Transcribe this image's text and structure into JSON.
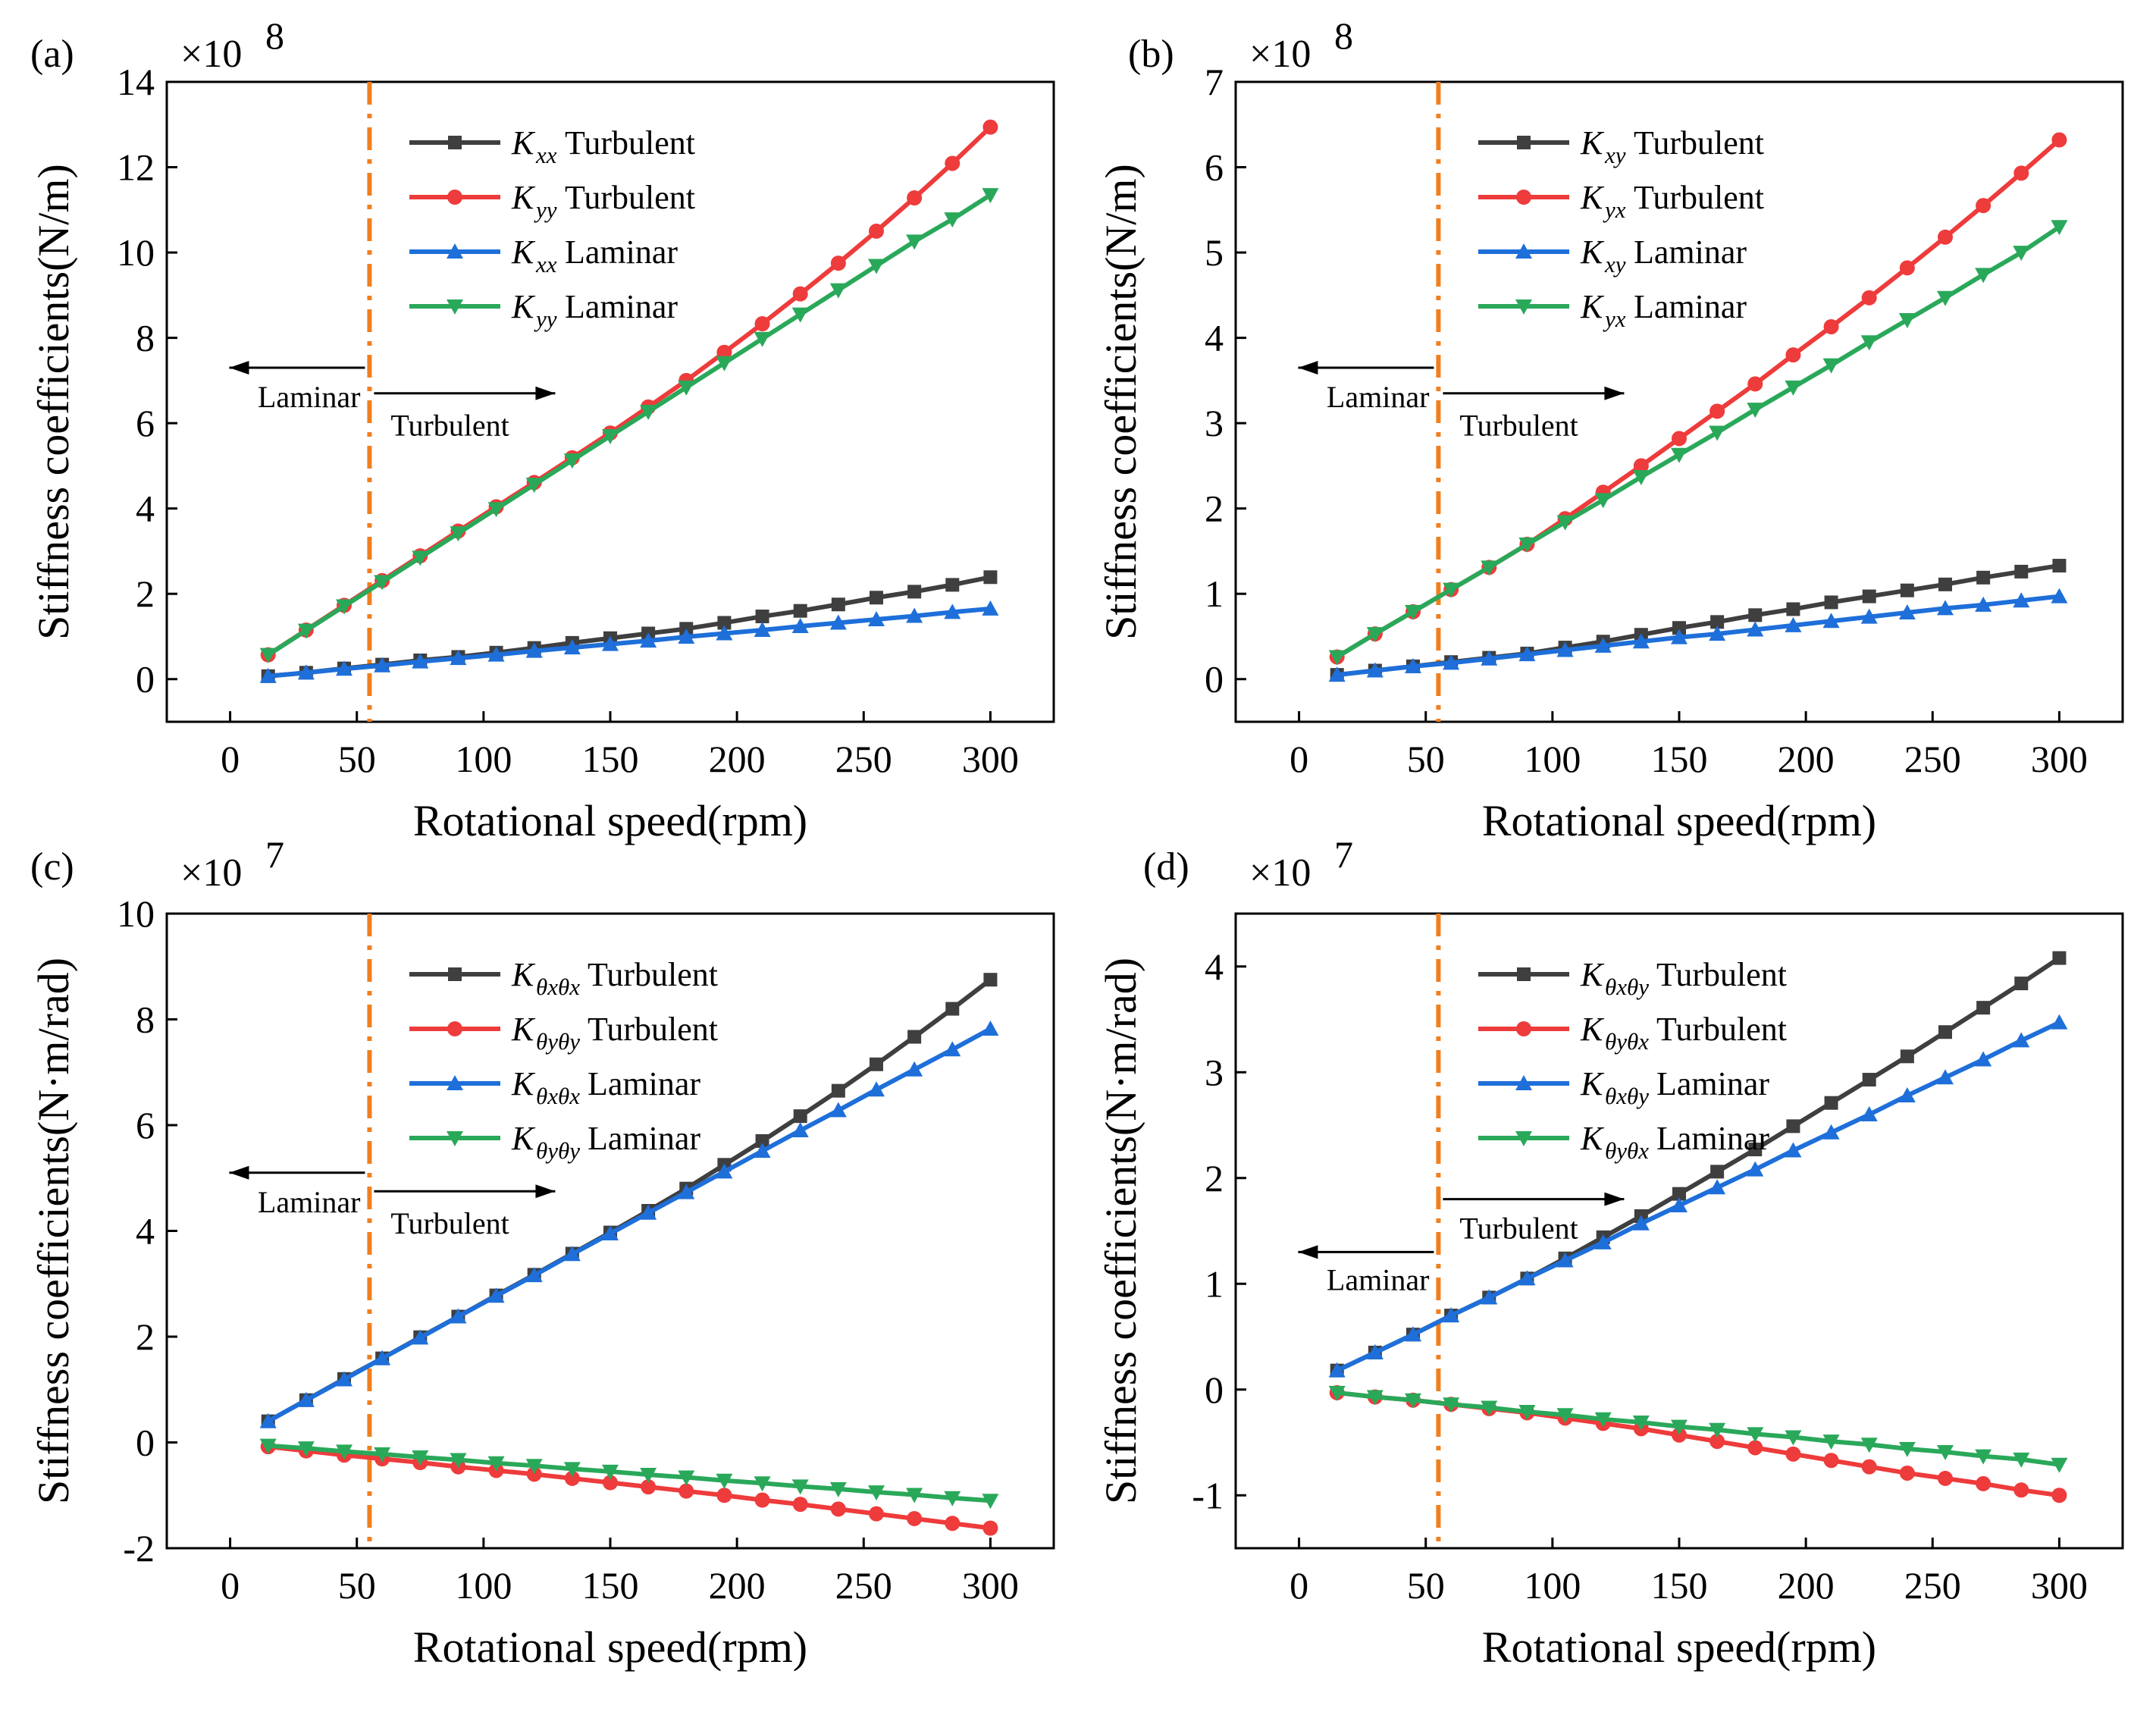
{
  "figure": {
    "vline_color": "#F07F1E",
    "vline_x": 55
  },
  "chart_data": [
    {
      "panel": "(a)",
      "type": "line",
      "scale": "×10",
      "scale_exp": "8",
      "xlabel": "Rotational speed(rpm)",
      "ylabel": "Stiffness coefficients(N/m)",
      "xlim": [
        -25,
        325
      ],
      "ylim": [
        -1,
        14
      ],
      "xticks": [
        "0",
        "50",
        "100",
        "150",
        "200",
        "250",
        "300"
      ],
      "xtick_values": [
        0,
        50,
        100,
        150,
        200,
        250,
        300
      ],
      "yticks": [
        "0",
        "2",
        "4",
        "6",
        "8",
        "10",
        "12",
        "14"
      ],
      "ytick_values": [
        0,
        2,
        4,
        6,
        8,
        10,
        12,
        14
      ],
      "legend_pos": "top-right",
      "annotations": {
        "left_label": "Laminar",
        "right_label": "Turbulent",
        "left_y": 7.3,
        "right_y": 6.7
      },
      "x": [
        15,
        30,
        45,
        60,
        75,
        90,
        105,
        120,
        135,
        150,
        165,
        180,
        195,
        210,
        225,
        240,
        255,
        270,
        285,
        300
      ],
      "series": [
        {
          "k": "K",
          "sub": "xx",
          "name": "Turbulent",
          "color": "#3F3F3F",
          "marker": "square",
          "values": [
            0.07,
            0.15,
            0.25,
            0.34,
            0.44,
            0.52,
            0.62,
            0.73,
            0.85,
            0.96,
            1.07,
            1.18,
            1.32,
            1.47,
            1.6,
            1.75,
            1.91,
            2.05,
            2.21,
            2.39
          ]
        },
        {
          "k": "K",
          "sub": "yy",
          "name": "Turbulent",
          "color": "#EE3B3B",
          "marker": "circle",
          "values": [
            0.57,
            1.15,
            1.73,
            2.31,
            2.89,
            3.47,
            4.04,
            4.61,
            5.19,
            5.77,
            6.38,
            7.0,
            7.66,
            8.33,
            9.03,
            9.75,
            10.5,
            11.28,
            12.09,
            12.94
          ]
        },
        {
          "k": "K",
          "sub": "xx",
          "name": "Laminar",
          "color": "#1E6FD9",
          "marker": "triangle-up",
          "values": [
            0.07,
            0.15,
            0.24,
            0.32,
            0.41,
            0.49,
            0.57,
            0.66,
            0.74,
            0.82,
            0.9,
            0.99,
            1.07,
            1.15,
            1.24,
            1.32,
            1.4,
            1.48,
            1.57,
            1.65
          ]
        },
        {
          "k": "K",
          "sub": "yy",
          "name": "Laminar",
          "color": "#2AA85A",
          "marker": "triangle-down",
          "values": [
            0.57,
            1.14,
            1.71,
            2.28,
            2.85,
            3.42,
            3.99,
            4.56,
            5.13,
            5.7,
            6.27,
            6.84,
            7.41,
            7.98,
            8.55,
            9.12,
            9.69,
            10.26,
            10.78,
            11.35
          ]
        }
      ]
    },
    {
      "panel": "(b)",
      "type": "line",
      "scale": "×10",
      "scale_exp": "8",
      "xlabel": "Rotational speed(rpm)",
      "ylabel": "Stiffness coefficients(N/m)",
      "xlim": [
        -25,
        325
      ],
      "ylim": [
        -0.5,
        7
      ],
      "xticks": [
        "0",
        "50",
        "100",
        "150",
        "200",
        "250",
        "300"
      ],
      "xtick_values": [
        0,
        50,
        100,
        150,
        200,
        250,
        300
      ],
      "yticks": [
        "0",
        "1",
        "2",
        "3",
        "4",
        "5",
        "6",
        "7"
      ],
      "ytick_values": [
        0,
        1,
        2,
        3,
        4,
        5,
        6,
        7
      ],
      "legend_pos": "top-right",
      "annotations": {
        "left_label": "Laminar",
        "right_label": "Turbulent",
        "left_y": 3.65,
        "right_y": 3.35
      },
      "x": [
        15,
        30,
        45,
        60,
        75,
        90,
        105,
        120,
        135,
        150,
        165,
        180,
        195,
        210,
        225,
        240,
        255,
        270,
        285,
        300
      ],
      "series": [
        {
          "k": "K",
          "sub": "xy",
          "name": "Turbulent",
          "color": "#3F3F3F",
          "marker": "square",
          "values": [
            0.05,
            0.1,
            0.15,
            0.2,
            0.25,
            0.3,
            0.37,
            0.44,
            0.52,
            0.6,
            0.67,
            0.75,
            0.82,
            0.9,
            0.97,
            1.04,
            1.11,
            1.19,
            1.26,
            1.33
          ]
        },
        {
          "k": "K",
          "sub": "yx",
          "name": "Turbulent",
          "color": "#EE3B3B",
          "marker": "circle",
          "values": [
            0.26,
            0.53,
            0.79,
            1.05,
            1.31,
            1.58,
            1.88,
            2.19,
            2.5,
            2.82,
            3.14,
            3.46,
            3.8,
            4.13,
            4.47,
            4.82,
            5.18,
            5.55,
            5.93,
            6.32
          ]
        },
        {
          "k": "K",
          "sub": "xy",
          "name": "Laminar",
          "color": "#1E6FD9",
          "marker": "triangle-up",
          "values": [
            0.05,
            0.1,
            0.15,
            0.19,
            0.24,
            0.29,
            0.34,
            0.39,
            0.44,
            0.49,
            0.53,
            0.58,
            0.63,
            0.68,
            0.73,
            0.78,
            0.83,
            0.87,
            0.92,
            0.97
          ]
        },
        {
          "k": "K",
          "sub": "yx",
          "name": "Laminar",
          "color": "#2AA85A",
          "marker": "triangle-down",
          "values": [
            0.26,
            0.53,
            0.79,
            1.05,
            1.31,
            1.58,
            1.84,
            2.1,
            2.37,
            2.63,
            2.89,
            3.16,
            3.42,
            3.68,
            3.95,
            4.21,
            4.47,
            4.74,
            5.0,
            5.3
          ]
        }
      ]
    },
    {
      "panel": "(c)",
      "type": "line",
      "scale": "×10",
      "scale_exp": "7",
      "xlabel": "Rotational speed(rpm)",
      "ylabel": "Stiffness coefficients(N·m/rad)",
      "xlim": [
        -25,
        325
      ],
      "ylim": [
        -2,
        10
      ],
      "xticks": [
        "0",
        "50",
        "100",
        "150",
        "200",
        "250",
        "300"
      ],
      "xtick_values": [
        0,
        50,
        100,
        150,
        200,
        250,
        300
      ],
      "yticks": [
        "-2",
        "0",
        "2",
        "4",
        "6",
        "8",
        "10"
      ],
      "ytick_values": [
        -2,
        0,
        2,
        4,
        6,
        8,
        10
      ],
      "legend_pos": "top-right",
      "annotations": {
        "left_label": "Laminar",
        "right_label": "Turbulent",
        "left_y": 5.1,
        "right_y": 4.75
      },
      "x": [
        15,
        30,
        45,
        60,
        75,
        90,
        105,
        120,
        135,
        150,
        165,
        180,
        195,
        210,
        225,
        240,
        255,
        270,
        285,
        300
      ],
      "series": [
        {
          "k": "K",
          "sub": "θxθx",
          "name": "Turbulent",
          "color": "#3F3F3F",
          "marker": "square",
          "values": [
            0.4,
            0.8,
            1.2,
            1.59,
            1.99,
            2.38,
            2.78,
            3.17,
            3.57,
            3.97,
            4.38,
            4.8,
            5.25,
            5.7,
            6.17,
            6.65,
            7.15,
            7.67,
            8.2,
            8.75
          ]
        },
        {
          "k": "K",
          "sub": "θyθy",
          "name": "Turbulent",
          "color": "#EE3B3B",
          "marker": "circle",
          "values": [
            -0.08,
            -0.16,
            -0.24,
            -0.31,
            -0.38,
            -0.46,
            -0.53,
            -0.6,
            -0.68,
            -0.76,
            -0.84,
            -0.92,
            -1.0,
            -1.09,
            -1.17,
            -1.26,
            -1.35,
            -1.44,
            -1.53,
            -1.62
          ]
        },
        {
          "k": "K",
          "sub": "θxθx",
          "name": "Laminar",
          "color": "#1E6FD9",
          "marker": "triangle-up",
          "values": [
            0.4,
            0.8,
            1.19,
            1.59,
            1.98,
            2.38,
            2.77,
            3.16,
            3.56,
            3.95,
            4.34,
            4.73,
            5.12,
            5.51,
            5.9,
            6.28,
            6.67,
            7.05,
            7.43,
            7.82
          ]
        },
        {
          "k": "K",
          "sub": "θyθy",
          "name": "Laminar",
          "color": "#2AA85A",
          "marker": "triangle-down",
          "values": [
            -0.06,
            -0.11,
            -0.17,
            -0.22,
            -0.28,
            -0.33,
            -0.39,
            -0.44,
            -0.5,
            -0.55,
            -0.61,
            -0.66,
            -0.72,
            -0.77,
            -0.83,
            -0.88,
            -0.94,
            -0.99,
            -1.05,
            -1.1
          ]
        }
      ]
    },
    {
      "panel": "(d)",
      "type": "line",
      "scale": "×10",
      "scale_exp": "7",
      "xlabel": "Rotational speed(rpm)",
      "ylabel": "Stiffness coefficients(N·m/rad)",
      "xlim": [
        -25,
        325
      ],
      "ylim": [
        -1.5,
        4.5
      ],
      "xticks": [
        "0",
        "50",
        "100",
        "150",
        "200",
        "250",
        "300"
      ],
      "xtick_values": [
        0,
        50,
        100,
        150,
        200,
        250,
        300
      ],
      "yticks": [
        "-1",
        "0",
        "1",
        "2",
        "3",
        "4"
      ],
      "ytick_values": [
        -1,
        0,
        1,
        2,
        3,
        4
      ],
      "legend_pos": "top-right",
      "annotations": {
        "left_label": "Laminar",
        "right_label": "Turbulent",
        "left_y": 1.3,
        "right_y": 1.8
      },
      "x": [
        15,
        30,
        45,
        60,
        75,
        90,
        105,
        120,
        135,
        150,
        165,
        180,
        195,
        210,
        225,
        240,
        255,
        270,
        285,
        300
      ],
      "series": [
        {
          "k": "K",
          "sub": "θxθy",
          "name": "Turbulent",
          "color": "#3F3F3F",
          "marker": "square",
          "values": [
            0.18,
            0.35,
            0.52,
            0.7,
            0.87,
            1.05,
            1.24,
            1.44,
            1.64,
            1.85,
            2.06,
            2.27,
            2.49,
            2.71,
            2.93,
            3.15,
            3.38,
            3.61,
            3.84,
            4.08
          ]
        },
        {
          "k": "K",
          "sub": "θyθx",
          "name": "Turbulent",
          "color": "#EE3B3B",
          "marker": "circle",
          "values": [
            -0.03,
            -0.07,
            -0.1,
            -0.14,
            -0.18,
            -0.22,
            -0.27,
            -0.32,
            -0.37,
            -0.43,
            -0.49,
            -0.55,
            -0.61,
            -0.67,
            -0.73,
            -0.79,
            -0.84,
            -0.89,
            -0.95,
            -1.0
          ]
        },
        {
          "k": "K",
          "sub": "θxθy",
          "name": "Laminar",
          "color": "#1E6FD9",
          "marker": "triangle-up",
          "values": [
            0.18,
            0.35,
            0.52,
            0.7,
            0.87,
            1.05,
            1.22,
            1.39,
            1.57,
            1.74,
            1.91,
            2.08,
            2.26,
            2.43,
            2.6,
            2.78,
            2.95,
            3.12,
            3.3,
            3.47
          ]
        },
        {
          "k": "K",
          "sub": "θyθx",
          "name": "Laminar",
          "color": "#2AA85A",
          "marker": "triangle-down",
          "values": [
            -0.03,
            -0.07,
            -0.1,
            -0.14,
            -0.17,
            -0.21,
            -0.24,
            -0.28,
            -0.31,
            -0.35,
            -0.38,
            -0.42,
            -0.45,
            -0.49,
            -0.52,
            -0.56,
            -0.59,
            -0.63,
            -0.66,
            -0.71
          ]
        }
      ]
    }
  ]
}
